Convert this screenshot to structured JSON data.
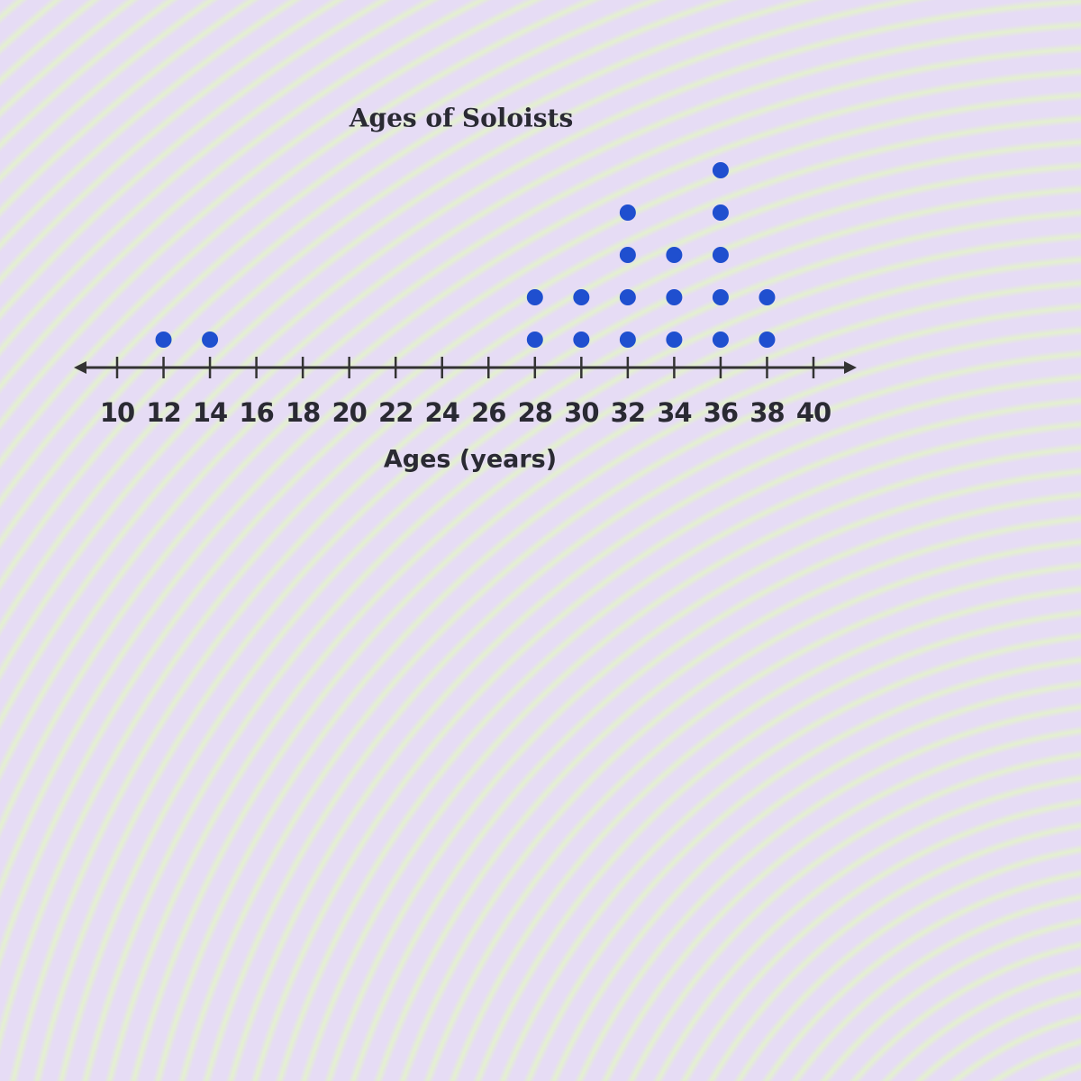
{
  "chart_data": {
    "type": "dot",
    "title": "Ages of Soloists",
    "x_label": "Ages (years)",
    "x": [
      12,
      14,
      28,
      30,
      32,
      34,
      36,
      38
    ],
    "values": [
      1,
      1,
      2,
      2,
      4,
      3,
      5,
      2
    ],
    "color": "#1f4fcf",
    "xlim": [
      10,
      40
    ],
    "xticks": [
      10,
      12,
      14,
      16,
      18,
      20,
      22,
      24,
      26,
      28,
      30,
      32,
      34,
      36,
      38,
      40
    ]
  }
}
